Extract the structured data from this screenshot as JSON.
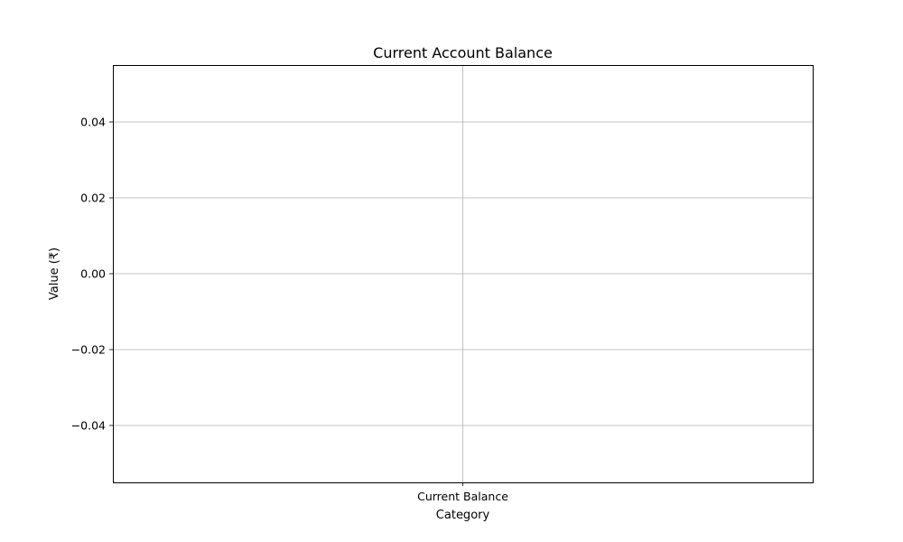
{
  "chart_data": {
    "type": "bar",
    "title": "Current Account Balance",
    "xlabel": "Category",
    "ylabel": "Value (₹)",
    "categories": [
      "Current Balance"
    ],
    "values": [
      0
    ],
    "ylim": [
      -0.055,
      0.055
    ],
    "yticks": [
      0.04,
      0.02,
      0.0,
      -0.02,
      -0.04
    ],
    "ytick_labels": [
      "0.04",
      "0.02",
      "0.00",
      "−0.02",
      "−0.04"
    ],
    "grid": true,
    "legend": "none",
    "colors": {
      "grid": "#b0b0b0",
      "axis": "#000000",
      "bar": "#1f77b4"
    }
  }
}
